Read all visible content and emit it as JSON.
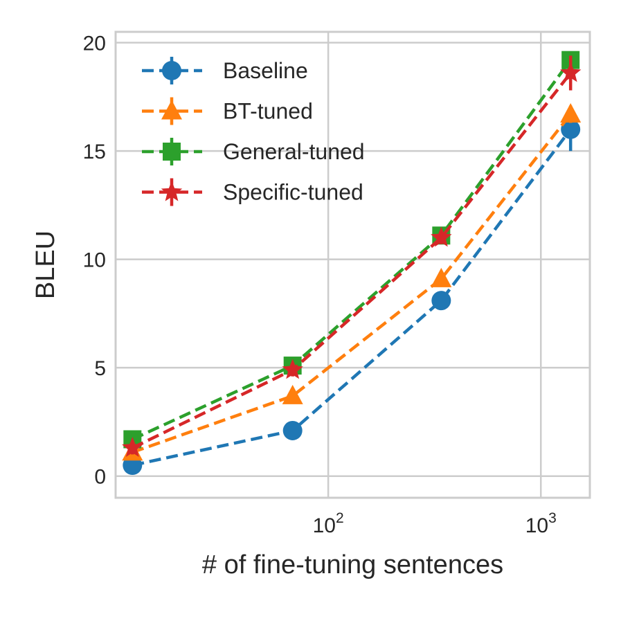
{
  "chart_data": {
    "type": "line",
    "title": "",
    "xlabel": "# of fine-tuning sentences",
    "ylabel": "BLEU",
    "xscale": "log",
    "x": [
      12,
      68,
      340,
      1380
    ],
    "xlim": [
      10,
      1700
    ],
    "ylim": [
      -1,
      20.5
    ],
    "yticks": [
      0,
      5,
      10,
      15,
      20
    ],
    "xticks": [
      {
        "value": 100,
        "base": "10",
        "exp": "2"
      },
      {
        "value": 1000,
        "base": "10",
        "exp": "3"
      }
    ],
    "grid": true,
    "legend_position": "top-left",
    "series": [
      {
        "name": "Baseline",
        "color": "#1f77b4",
        "marker": "circle",
        "values": [
          0.5,
          2.1,
          8.1,
          16.0
        ],
        "errors": [
          0.3,
          0.3,
          0.3,
          1.0
        ]
      },
      {
        "name": "BT-tuned",
        "color": "#ff7f0e",
        "marker": "triangle",
        "values": [
          1.1,
          3.7,
          9.1,
          16.7
        ],
        "errors": [
          0.3,
          0.3,
          0.3,
          0.4
        ]
      },
      {
        "name": "General-tuned",
        "color": "#2ca02c",
        "marker": "square",
        "values": [
          1.7,
          5.1,
          11.1,
          19.2
        ],
        "errors": [
          0.3,
          0.3,
          0.3,
          0.3
        ]
      },
      {
        "name": "Specific-tuned",
        "color": "#d62728",
        "marker": "star",
        "values": [
          1.3,
          4.9,
          11.0,
          18.6
        ],
        "errors": [
          0.3,
          0.3,
          0.3,
          0.8
        ]
      }
    ]
  }
}
